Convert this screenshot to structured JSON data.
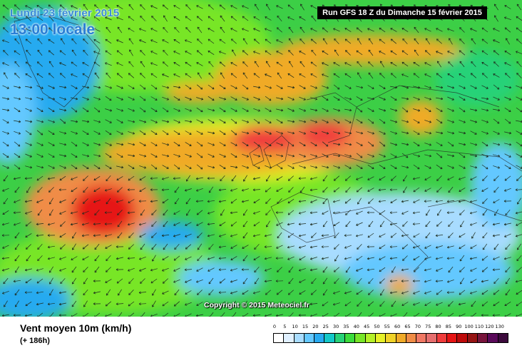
{
  "map": {
    "date": "Lundi 23 février 2015",
    "time": "13:00 locale",
    "run": "Run GFS 18 Z du Dimanche 15 février 2015",
    "copyright": "Copyright © 2015 Meteociel.fr"
  },
  "footer": {
    "title": "Vent moyen 10m (km/h)",
    "subtitle": "(+ 186h)"
  },
  "legend": {
    "labels": [
      "0",
      "5",
      "10",
      "15",
      "20",
      "25",
      "30",
      "35",
      "40",
      "45",
      "50",
      "55",
      "60",
      "65",
      "70",
      "75",
      "80",
      "85",
      "90",
      "100",
      "110",
      "120",
      "130"
    ],
    "colors": [
      "#ffffff",
      "#e0f0ff",
      "#a8dcff",
      "#64c8ff",
      "#28aaf0",
      "#14c8c8",
      "#28d278",
      "#3cdc3c",
      "#78e628",
      "#b4f028",
      "#e6f028",
      "#f0d228",
      "#f0aa28",
      "#f08c46",
      "#f07864",
      "#e66e6e",
      "#f03c3c",
      "#e61414",
      "#be0a0a",
      "#961414",
      "#78143c",
      "#5a0a5a",
      "#3c0a3c"
    ]
  }
}
